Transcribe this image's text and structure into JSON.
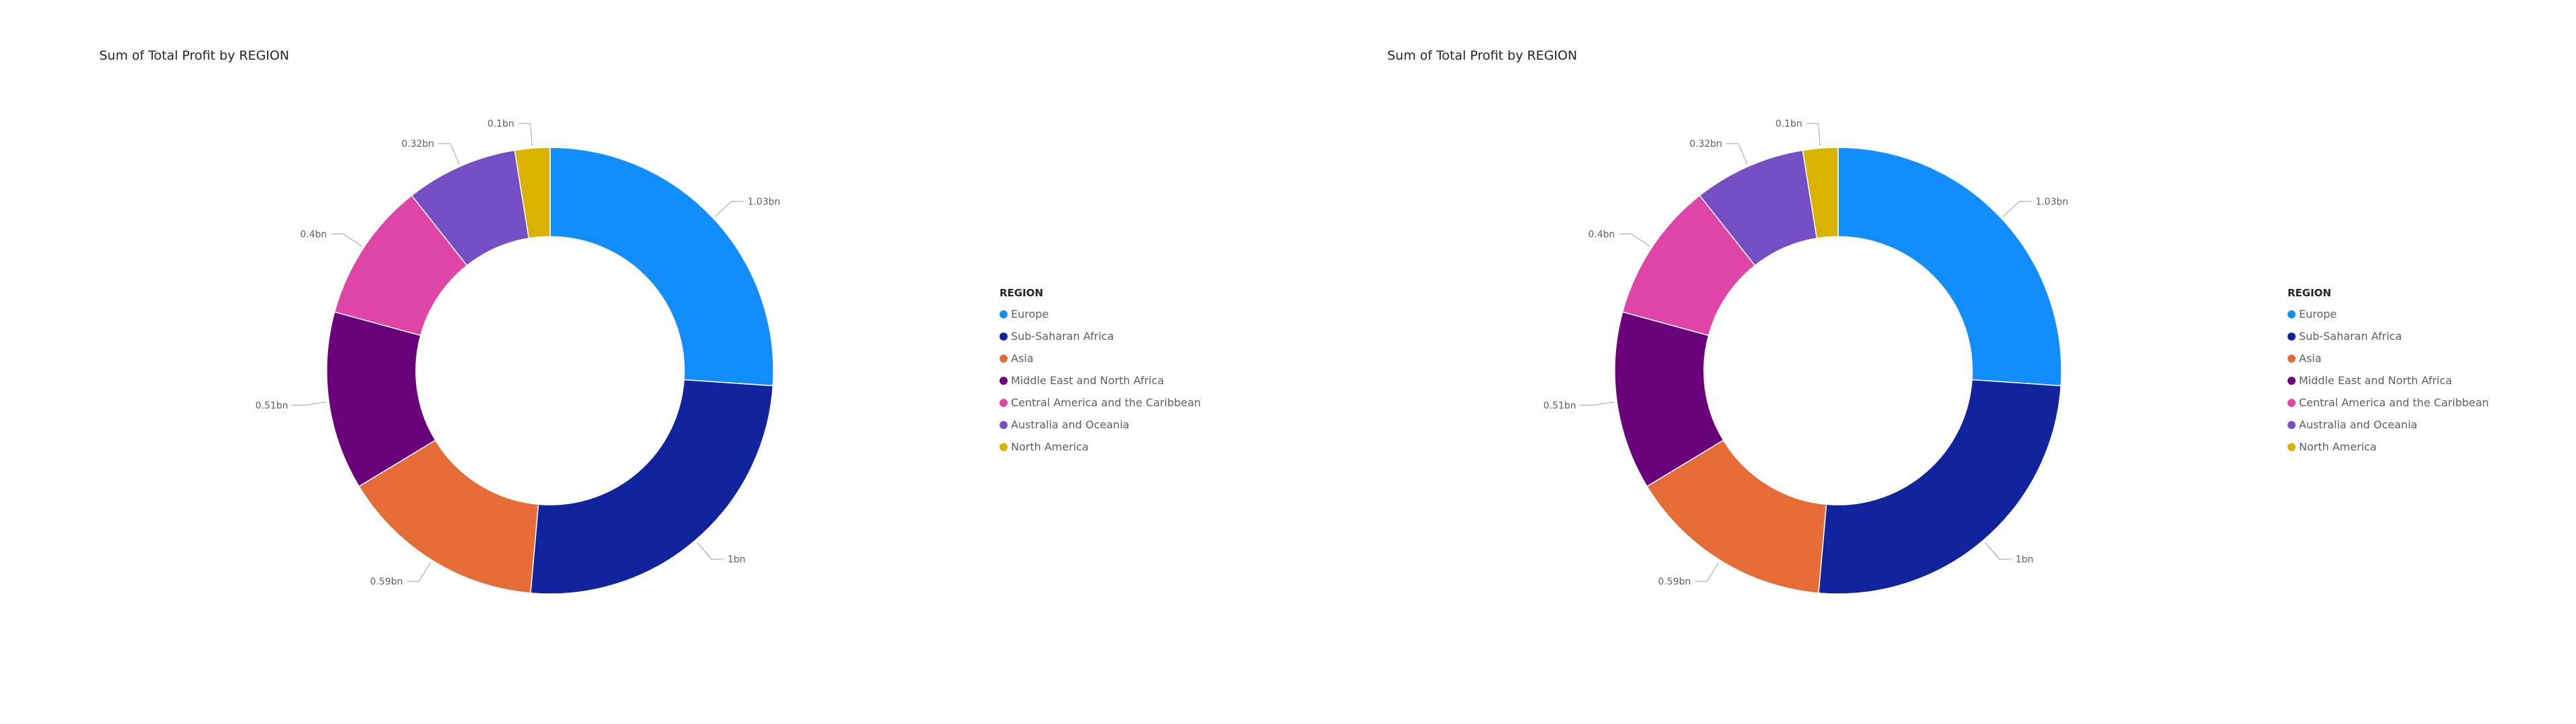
{
  "chart_data": [
    {
      "type": "pie",
      "title": "Sum of Total Profit by REGION",
      "legend_title": "REGION",
      "legend_placement": "right",
      "categories": [
        "Europe",
        "Sub-Saharan Africa",
        "Asia",
        "Middle East and North Africa",
        "Central America and the Caribbean",
        "Australia and Oceania",
        "North America"
      ],
      "values": [
        1.03,
        1.0,
        0.59,
        0.51,
        0.4,
        0.32,
        0.1
      ],
      "data_labels": [
        "1.03bn",
        "1bn",
        "0.59bn",
        "0.51bn",
        "0.4bn",
        "0.32bn",
        "0.1bn"
      ],
      "colors": [
        "#118DFF",
        "#12239E",
        "#E66C37",
        "#6B007B",
        "#E044A7",
        "#744EC2",
        "#D9B300"
      ]
    },
    {
      "type": "pie",
      "title": "Sum of Total Profit by REGION",
      "legend_title": "REGION",
      "legend_placement": "right",
      "categories": [
        "Europe",
        "Sub-Saharan Africa",
        "Asia",
        "Middle East and North Africa",
        "Central America and the Caribbean",
        "Australia and Oceania",
        "North America"
      ],
      "values": [
        1.03,
        1.0,
        0.59,
        0.51,
        0.4,
        0.32,
        0.1
      ],
      "data_labels": [
        "1.03bn",
        "1bn",
        "0.59bn",
        "0.51bn",
        "0.4bn",
        "0.32bn",
        "0.1bn"
      ],
      "colors": [
        "#118DFF",
        "#12239E",
        "#E66C37",
        "#6B007B",
        "#E044A7",
        "#744EC2",
        "#D9B300"
      ]
    }
  ]
}
